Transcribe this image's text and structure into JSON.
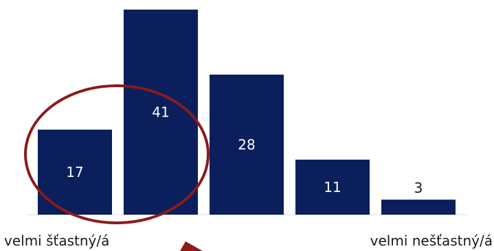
{
  "chart_data": {
    "type": "bar",
    "categories": [
      "",
      "",
      "",
      "",
      ""
    ],
    "values": [
      17,
      41,
      28,
      11,
      3
    ],
    "data_labels": [
      "17",
      "41",
      "28",
      "11",
      "3"
    ],
    "title": "",
    "xlabel": "",
    "ylabel": "",
    "ylim": [
      0,
      41
    ],
    "grid": false,
    "legend": "none",
    "bar_color": "#0a1f5c",
    "baseline_color": "#d9d9d9",
    "axis_end_labels": {
      "left": "velmi šťastný/á",
      "right": "velmi nešťastný/á"
    },
    "annotation": {
      "shape": "ellipse",
      "color": "#8b1a1a",
      "encloses_bars": [
        0,
        1
      ]
    }
  }
}
